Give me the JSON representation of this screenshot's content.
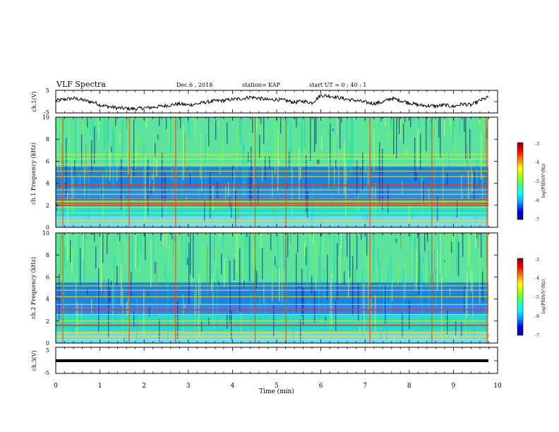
{
  "header": {
    "title": "VLF Spectra",
    "date": "Dec.6 , 2018",
    "station": "station= KAP",
    "start": "start UT = 0 : 40 : 1"
  },
  "chart_data": [
    {
      "type": "line",
      "ylabel": "ch.1(V)",
      "ylim": [
        -5,
        5
      ],
      "yticks": [
        "5",
        "-5"
      ],
      "xlim": [
        0,
        10
      ],
      "series": [
        {
          "x": [
            0,
            0.2,
            0.4,
            0.5,
            0.7,
            0.9,
            1.0,
            1.2,
            1.4,
            1.6,
            1.8,
            2.0,
            2.2,
            2.4,
            2.6,
            2.7,
            2.8,
            3.0,
            3.2,
            3.4,
            3.6,
            3.8,
            4.0,
            4.2,
            4.4,
            4.6,
            4.8,
            5.0,
            5.2,
            5.4,
            5.6,
            5.8,
            6.0,
            6.2,
            6.4,
            6.6,
            6.8,
            7.0,
            7.2,
            7.4,
            7.6,
            7.8,
            8.0,
            8.2,
            8.4,
            8.6,
            8.8,
            9.0,
            9.2,
            9.4,
            9.6,
            9.8
          ],
          "y": [
            0.5,
            1.0,
            1.5,
            1.2,
            0.3,
            -0.5,
            -1.5,
            -2.2,
            -2.8,
            -3.0,
            -3.2,
            -2.8,
            -2.5,
            -2.0,
            -1.5,
            -1.2,
            -1.0,
            -1.5,
            -1.0,
            -0.2,
            0.3,
            0.5,
            1.0,
            1.3,
            2.0,
            1.5,
            0.8,
            1.0,
            0.5,
            -0.3,
            0.2,
            -0.5,
            2.8,
            2.5,
            1.8,
            1.0,
            0.5,
            -0.3,
            -0.8,
            -0.2,
            1.5,
            0.5,
            -0.5,
            -1.5,
            -1.8,
            -2.0,
            -1.5,
            -2.2,
            -1.0,
            -1.5,
            0.5,
            2.0
          ]
        }
      ]
    },
    {
      "type": "heatmap",
      "ylabel": "ch.1 Frequency (kHz)",
      "ylim": [
        0,
        10
      ],
      "yticks": [
        "0",
        "2",
        "4",
        "6",
        "8",
        "10"
      ],
      "xlim": [
        0,
        10
      ],
      "colorbar": {
        "label": "log(PSD)(V²/Hz)",
        "ticks": [
          "-3",
          "-4",
          "-5",
          "-6",
          "-7"
        ],
        "min": -7,
        "max": -3
      },
      "lines_khz": [
        0.3,
        0.6,
        1.3,
        1.8,
        2.0,
        2.3,
        2.5,
        3.0,
        3.4,
        3.8,
        4.6,
        5.1,
        5.7,
        6.2,
        6.6
      ],
      "strong_lines_khz": [
        2.0,
        2.2,
        2.5,
        3.8
      ]
    },
    {
      "type": "heatmap",
      "ylabel": "ch.2 Frequency (kHz)",
      "ylim": [
        0,
        10
      ],
      "yticks": [
        "0",
        "2",
        "4",
        "6",
        "8",
        "10"
      ],
      "xlim": [
        0,
        10
      ],
      "colorbar": {
        "label": "log(PSD)(V²/Hz)",
        "ticks": [
          "-3",
          "-4",
          "-5",
          "-6",
          "-7"
        ],
        "min": -7,
        "max": -3
      },
      "lines_khz": [
        0.3,
        0.6,
        1.0,
        1.6,
        2.0,
        2.6,
        3.0,
        3.5,
        4.2,
        4.8,
        5.2
      ],
      "strong_lines_khz": [
        1.6,
        3.0
      ]
    },
    {
      "type": "line",
      "ylabel": "ch.3(V)",
      "ylim": [
        -5,
        5
      ],
      "yticks": [
        "5",
        "-5"
      ],
      "xlim": [
        0,
        10
      ],
      "series": [
        {
          "x": [
            0,
            9.85
          ],
          "y": [
            0,
            0
          ]
        }
      ]
    }
  ],
  "xaxis": {
    "label": "Time (min)",
    "ticks": [
      "0",
      "1",
      "2",
      "3",
      "4",
      "5",
      "6",
      "7",
      "8",
      "9",
      "10"
    ]
  },
  "colors": {
    "colormap": [
      "#00007f",
      "#0000ff",
      "#00a0ff",
      "#00ffff",
      "#40ff80",
      "#a0ff00",
      "#ffff00",
      "#ff8000",
      "#ff0000",
      "#7f0000"
    ]
  }
}
